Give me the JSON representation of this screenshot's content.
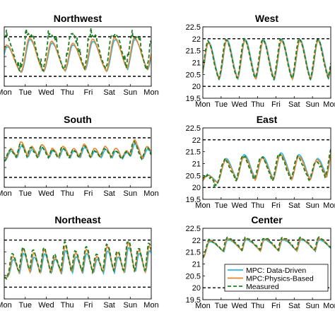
{
  "chart_data": {
    "type": "line",
    "x_ticks": [
      "Mon",
      "Tue",
      "Wed",
      "Thu",
      "Fri",
      "Sat",
      "Sun",
      "Mon"
    ],
    "y_ticks": [
      "19.5",
      "20",
      "20.5",
      "21",
      "21.5",
      "22",
      "22.5"
    ],
    "ylim": [
      19.5,
      22.5
    ],
    "comfort_band": [
      20,
      22
    ],
    "grid": false,
    "legend": {
      "placement": "bottom-right of Center panel",
      "entries": [
        {
          "label": "MPC: Data-Driven",
          "color": "#29b8e8",
          "style": "solid"
        },
        {
          "label": "MPC:Physics-Based",
          "color": "#e8852a",
          "style": "solid"
        },
        {
          "label": "Measured",
          "color": "#1e7d22",
          "style": "dashed"
        }
      ]
    },
    "panels": [
      {
        "title": "Northwest",
        "profile": {
          "low": 20.05,
          "high": 21.95,
          "peaks": [
            0.12,
            1.2,
            2.25,
            3.25,
            4.2,
            5.25,
            6.2,
            7.15
          ],
          "rise": 0.18,
          "fall": 0.32,
          "amp": [
            0.8,
            1.0,
            0.9,
            0.85,
            0.95,
            1.0,
            1.0,
            0.8
          ],
          "offset": 0.35
        },
        "series": {
          "data_driven": {
            "amp_scale": 0.95,
            "phase": 0.02,
            "noise": 0.03
          },
          "physics_based": {
            "amp_scale": 1.0,
            "phase": 0.0,
            "noise": 0.04
          },
          "measured": {
            "amp_scale": 1.35,
            "phase": -0.04,
            "noise": 0.18,
            "spikes": true
          }
        }
      },
      {
        "title": "West",
        "profile": {
          "low": 20.05,
          "high": 21.95,
          "peaks": [
            0.3,
            1.3,
            2.3,
            3.3,
            4.3,
            5.3,
            6.3,
            7.25
          ],
          "rise": 0.2,
          "fall": 0.3,
          "amp": [
            0.95,
            1.0,
            1.0,
            1.0,
            1.0,
            1.0,
            1.0,
            0.95
          ],
          "offset": 0.2
        },
        "series": {
          "data_driven": {
            "amp_scale": 1.0,
            "phase": 0.02,
            "noise": 0.02
          },
          "physics_based": {
            "amp_scale": 0.98,
            "phase": 0.0,
            "noise": 0.03
          },
          "measured": {
            "amp_scale": 1.02,
            "phase": -0.02,
            "noise": 0.08,
            "spikes": false
          }
        }
      },
      {
        "title": "South",
        "profile": {
          "low": 20.8,
          "high": 21.9,
          "peaks": [
            0.3,
            0.8,
            1.3,
            1.8,
            2.3,
            2.8,
            3.3,
            3.8,
            4.3,
            4.8,
            5.3,
            5.8,
            6.2,
            6.8
          ],
          "rise": 0.12,
          "fall": 0.2,
          "amp": [
            0.6,
            0.9,
            0.7,
            0.8,
            0.6,
            0.7,
            0.6,
            0.8,
            0.6,
            0.7,
            0.6,
            0.5,
            1.0,
            0.7
          ],
          "offset": 0.4
        },
        "series": {
          "data_driven": {
            "amp_scale": 0.8,
            "phase": 0.02,
            "noise": 0.03
          },
          "physics_based": {
            "amp_scale": 1.0,
            "phase": 0.0,
            "noise": 0.06
          },
          "measured": {
            "amp_scale": 0.9,
            "phase": -0.03,
            "noise": 0.12,
            "spikes": false
          }
        }
      },
      {
        "title": "East",
        "profile": {
          "low": 20.05,
          "high": 21.6,
          "peaks": [
            0.25,
            1.25,
            2.25,
            3.25,
            4.25,
            5.25,
            6.25,
            7.15
          ],
          "rise": 0.22,
          "fall": 0.35,
          "amp": [
            0.3,
            0.75,
            0.85,
            0.8,
            0.9,
            0.85,
            0.75,
            1.2
          ],
          "offset": 0.3
        },
        "series": {
          "data_driven": {
            "amp_scale": 1.0,
            "phase": 0.02,
            "noise": 0.03
          },
          "physics_based": {
            "amp_scale": 0.95,
            "phase": 0.0,
            "noise": 0.04
          },
          "measured": {
            "amp_scale": 0.95,
            "phase": -0.05,
            "noise": 0.14,
            "spikes": false,
            "low_shift": -0.25
          }
        }
      },
      {
        "title": "Northeast",
        "profile": {
          "low": 20.4,
          "high": 21.9,
          "peaks": [
            0.4,
            0.9,
            1.4,
            1.9,
            2.4,
            2.9,
            3.4,
            3.9,
            4.4,
            4.9,
            5.4,
            5.9,
            6.4,
            6.9
          ],
          "rise": 0.1,
          "fall": 0.18,
          "amp": [
            0.6,
            0.8,
            0.7,
            0.8,
            0.6,
            0.9,
            0.7,
            0.8,
            0.6,
            0.9,
            0.7,
            1.0,
            0.8,
            0.9
          ],
          "offset": 0.45
        },
        "series": {
          "data_driven": {
            "amp_scale": 0.85,
            "phase": 0.02,
            "noise": 0.03
          },
          "physics_based": {
            "amp_scale": 1.0,
            "phase": 0.0,
            "noise": 0.05
          },
          "measured": {
            "amp_scale": 1.1,
            "phase": -0.02,
            "noise": 0.15,
            "spikes": false
          }
        }
      },
      {
        "title": "Center",
        "profile": {
          "low": 21.2,
          "high": 22.05,
          "peaks": [
            0.35,
            1.35,
            2.35,
            3.35,
            4.35,
            5.35,
            6.35,
            7.3
          ],
          "rise": 0.15,
          "fall": 0.6,
          "amp": [
            0.9,
            1.0,
            1.0,
            1.0,
            1.0,
            1.0,
            1.0,
            0.9
          ],
          "offset": 0.8
        },
        "series": {
          "data_driven": {
            "amp_scale": 0.95,
            "phase": 0.01,
            "noise": 0.02
          },
          "physics_based": {
            "amp_scale": 1.0,
            "phase": 0.0,
            "noise": 0.03
          },
          "measured": {
            "amp_scale": 1.05,
            "phase": -0.02,
            "noise": 0.08,
            "spikes": false
          }
        }
      }
    ]
  }
}
